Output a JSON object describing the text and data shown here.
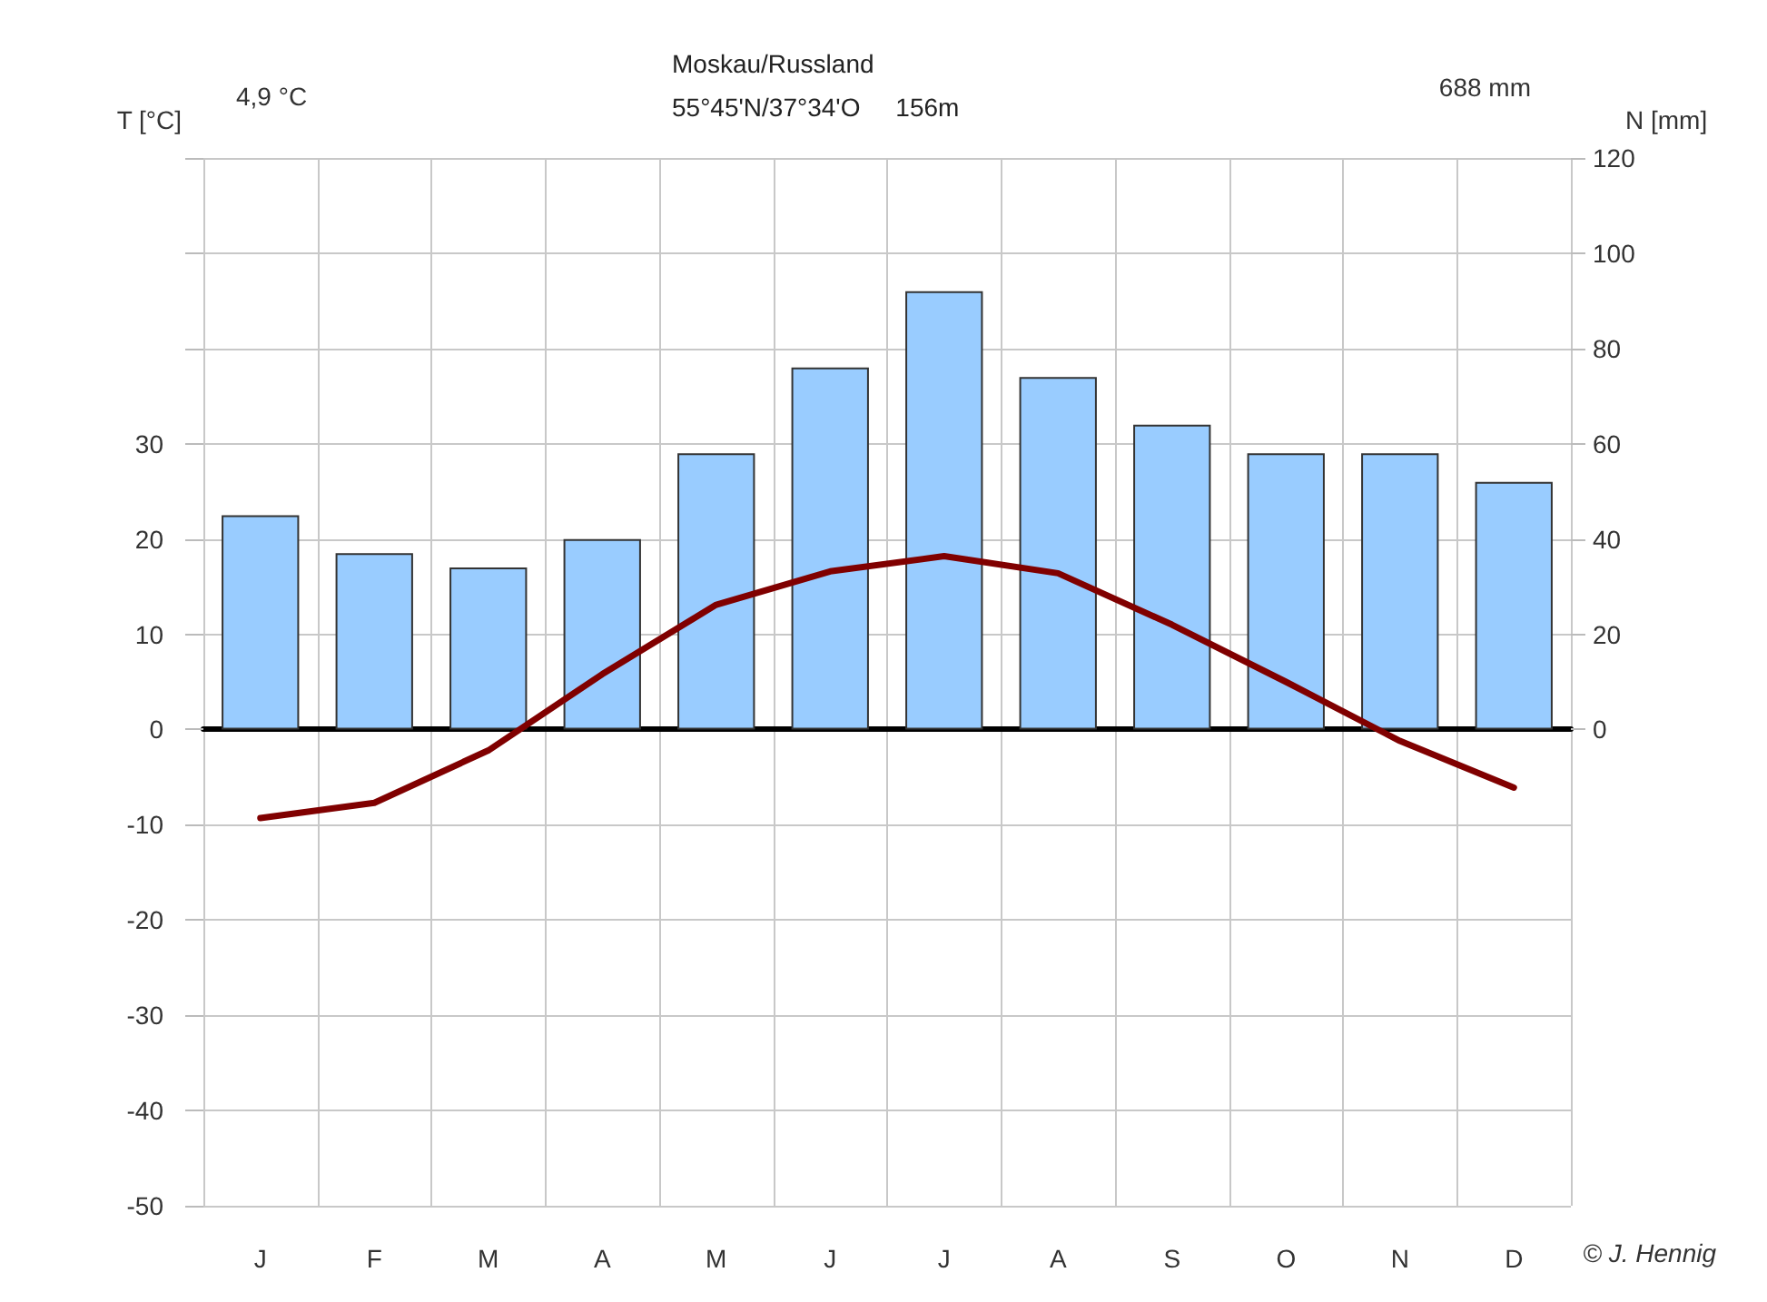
{
  "chart_data": {
    "type": "bar",
    "title": "Moskau/Russland",
    "subtitle": "55°45'N/37°34'O     156m",
    "ylabel": "T [°C]",
    "y2label": "N [mm]",
    "annotations": [
      "4,9 °C",
      "688 mm",
      "© J. Hennig"
    ],
    "categories": [
      "J",
      "F",
      "M",
      "A",
      "M",
      "J",
      "J",
      "A",
      "S",
      "O",
      "N",
      "D"
    ],
    "series": [
      {
        "axis": "y2",
        "color": "#99ccff",
        "values": [
          45,
          37,
          34,
          40,
          58,
          76,
          92,
          74,
          64,
          58,
          58,
          52
        ]
      },
      {
        "type": "line",
        "color": "#800000",
        "values": [
          -9.3,
          -7.7,
          -2.2,
          5.8,
          13.1,
          16.6,
          18.2,
          16.4,
          11.0,
          5.0,
          -1.2,
          -6.1
        ]
      }
    ],
    "ylim": [
      -50,
      60
    ],
    "yticks": [
      -50,
      -40,
      -30,
      -20,
      -10,
      0,
      10,
      20,
      30,
      {
        "value": 40,
        "label": null
      },
      {
        "value": 50,
        "label": null
      },
      {
        "value": 60,
        "label": null
      }
    ],
    "y2lim": [
      -100,
      120
    ],
    "y2ticks": [
      0,
      20,
      40,
      60,
      80,
      100,
      120
    ],
    "grid": true,
    "marker": "none",
    "line_style": "solid"
  }
}
